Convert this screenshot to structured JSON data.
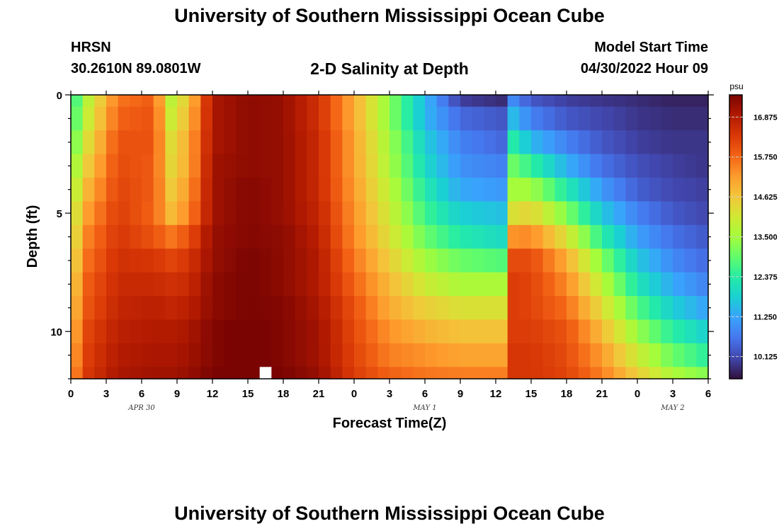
{
  "page": {
    "title": "University of Southern Mississippi Ocean Cube",
    "footer_title": "University of Southern Mississippi Ocean Cube",
    "station": "HRSN",
    "coords": "30.2610N  89.0801W",
    "subtitle": "2-D Salinity at Depth",
    "model_start_label": "Model Start Time",
    "model_start_value": "04/30/2022 Hour 09"
  },
  "chart_data": {
    "type": "heatmap",
    "title": "2-D Salinity at Depth",
    "xlabel": "Forecast Time(Z)",
    "ylabel": "Depth (ft)",
    "x_ticks": [
      "0",
      "3",
      "6",
      "9",
      "12",
      "15",
      "18",
      "21",
      "0",
      "3",
      "6",
      "9",
      "12",
      "15",
      "18",
      "21",
      "0",
      "3",
      "6"
    ],
    "date_labels": [
      {
        "text": "APR 30",
        "at_hour": 6
      },
      {
        "text": "MAY 1",
        "at_hour": 30
      },
      {
        "text": "MAY 2",
        "at_hour": 51
      }
    ],
    "x_range_hours": [
      0,
      54
    ],
    "y_range_ft": [
      0,
      12
    ],
    "y_ticks": [
      "0",
      "5",
      "10"
    ],
    "colorbar": {
      "unit": "psu",
      "min": 9.5,
      "max": 17.5,
      "ticks": [
        "16.875",
        "15.750",
        "14.625",
        "13.500",
        "12.375",
        "11.250",
        "10.125"
      ],
      "tick_values": [
        16.875,
        15.75,
        14.625,
        13.5,
        12.375,
        11.25,
        10.125
      ]
    },
    "colormap": [
      "#30123b",
      "#4145ab",
      "#4675ed",
      "#39a2fc",
      "#1bcfd4",
      "#24eca6",
      "#61fc6c",
      "#a4fc3b",
      "#d1e834",
      "#f3c63a",
      "#fe9b2d",
      "#f36315",
      "#d93806",
      "#b11901",
      "#7a0402"
    ],
    "depth_levels_ft": [
      0,
      1,
      2,
      3,
      4,
      5,
      6,
      7,
      8,
      9,
      10,
      11,
      12
    ],
    "time_knots_hours": [
      0,
      1.5,
      4,
      7,
      8.5,
      10,
      12,
      15,
      18,
      21,
      24,
      27,
      30,
      33,
      36.5,
      37.5,
      39,
      42,
      45,
      48,
      51,
      54
    ],
    "salinity_psu_by_depth": [
      [
        12.3,
        13.8,
        15.6,
        15.9,
        13.8,
        14.6,
        17.0,
        17.3,
        17.2,
        16.5,
        15.0,
        13.3,
        11.5,
        10.0,
        9.8,
        10.9,
        10.3,
        10.0,
        9.9,
        9.8,
        9.7,
        9.7
      ],
      [
        12.5,
        14.0,
        15.8,
        16.0,
        14.0,
        14.8,
        17.0,
        17.3,
        17.2,
        16.5,
        15.0,
        13.3,
        11.5,
        10.5,
        10.3,
        11.5,
        10.8,
        10.3,
        10.1,
        9.9,
        9.8,
        9.8
      ],
      [
        12.8,
        14.3,
        16.0,
        16.0,
        14.3,
        15.0,
        17.0,
        17.3,
        17.2,
        16.6,
        15.1,
        13.5,
        11.8,
        10.8,
        10.5,
        12.3,
        11.5,
        10.8,
        10.3,
        10.0,
        9.9,
        9.9
      ],
      [
        13.2,
        14.6,
        16.1,
        15.9,
        14.4,
        15.0,
        17.1,
        17.3,
        17.2,
        16.6,
        15.1,
        13.6,
        12.0,
        11.0,
        10.8,
        13.0,
        12.5,
        11.4,
        10.6,
        10.2,
        10.0,
        9.9
      ],
      [
        13.5,
        14.9,
        16.2,
        15.9,
        14.6,
        15.2,
        17.1,
        17.4,
        17.2,
        16.6,
        15.2,
        13.8,
        12.3,
        11.3,
        11.1,
        13.5,
        13.5,
        12.3,
        11.1,
        10.4,
        10.1,
        10.0
      ],
      [
        13.8,
        15.2,
        16.3,
        15.8,
        14.8,
        15.4,
        17.1,
        17.4,
        17.2,
        16.7,
        15.3,
        14.0,
        12.6,
        11.8,
        11.6,
        14.2,
        14.4,
        13.2,
        11.7,
        10.8,
        10.3,
        10.1
      ],
      [
        14.0,
        15.5,
        16.4,
        16.0,
        15.6,
        16.0,
        17.2,
        17.4,
        17.3,
        16.8,
        15.4,
        14.2,
        13.0,
        12.3,
        12.0,
        15.3,
        15.4,
        14.2,
        12.4,
        11.2,
        10.6,
        10.3
      ],
      [
        14.2,
        15.7,
        16.5,
        16.4,
        16.2,
        16.4,
        17.2,
        17.5,
        17.3,
        16.9,
        15.6,
        14.5,
        13.5,
        13.0,
        12.8,
        16.1,
        16.1,
        15.0,
        13.2,
        11.7,
        10.9,
        10.5
      ],
      [
        14.4,
        15.9,
        16.6,
        16.6,
        16.5,
        16.6,
        17.3,
        17.5,
        17.3,
        16.9,
        15.8,
        14.8,
        14.0,
        13.6,
        13.6,
        16.3,
        16.2,
        15.4,
        13.8,
        12.2,
        11.3,
        10.8
      ],
      [
        14.6,
        16.0,
        16.7,
        16.8,
        16.7,
        16.8,
        17.3,
        17.5,
        17.4,
        17.0,
        16.0,
        15.0,
        14.5,
        14.2,
        14.2,
        16.3,
        16.2,
        15.7,
        14.3,
        12.8,
        11.8,
        11.2
      ],
      [
        14.8,
        16.2,
        16.8,
        16.9,
        16.9,
        17.0,
        17.4,
        17.6,
        17.4,
        17.1,
        16.1,
        15.3,
        14.9,
        14.7,
        14.7,
        16.3,
        16.3,
        16.0,
        14.8,
        13.4,
        12.4,
        11.8
      ],
      [
        15.0,
        16.3,
        16.9,
        17.0,
        17.0,
        17.1,
        17.4,
        17.6,
        17.4,
        17.1,
        16.2,
        15.5,
        15.3,
        15.1,
        15.1,
        16.4,
        16.4,
        16.1,
        15.2,
        14.0,
        13.0,
        12.4
      ],
      [
        15.2,
        16.4,
        17.0,
        17.1,
        17.1,
        17.2,
        17.5,
        17.6,
        17.5,
        17.2,
        16.3,
        15.8,
        15.6,
        15.5,
        15.5,
        16.4,
        16.4,
        16.2,
        15.5,
        14.5,
        13.6,
        13.2
      ]
    ],
    "masked_cell": {
      "depth_ft": 12,
      "hour": 16
    }
  }
}
